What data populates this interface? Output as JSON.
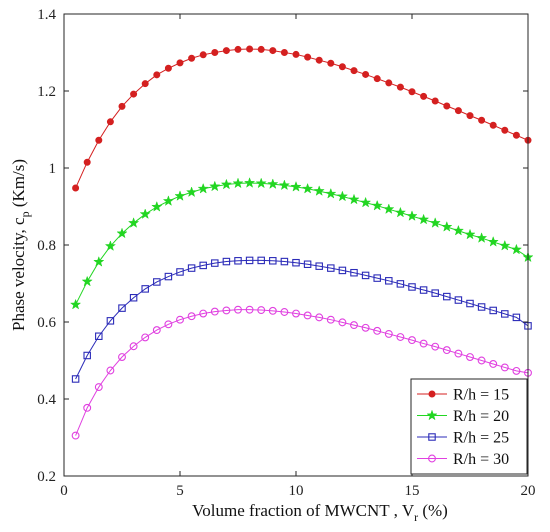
{
  "chart_data": {
    "type": "line",
    "xlabel": {
      "main": "Volume fraction of MWCNT , V",
      "sub": "r",
      "tail": " (%)"
    },
    "ylabel": {
      "main": "Phase velocity, c",
      "sub": "p",
      "tail": " (Km/s)"
    },
    "xlim": [
      0,
      20
    ],
    "ylim": [
      0.2,
      1.4
    ],
    "xticks": [
      0,
      5,
      10,
      15,
      20
    ],
    "xtick_labels": [
      "0",
      "5",
      "10",
      "15",
      "20"
    ],
    "yticks": [
      0.2,
      0.4,
      0.6,
      0.8,
      1.0,
      1.2,
      1.4
    ],
    "ytick_labels": [
      "0.2",
      "0.4",
      "0.6",
      "0.8",
      "1",
      "1.2",
      "1.4"
    ],
    "grid": false,
    "legend_position": "bottom-right",
    "x": [
      0.5,
      1,
      1.5,
      2,
      2.5,
      3,
      3.5,
      4,
      4.5,
      5,
      5.5,
      6,
      6.5,
      7,
      7.5,
      8,
      8.5,
      9,
      9.5,
      10,
      10.5,
      11,
      11.5,
      12,
      12.5,
      13,
      13.5,
      14,
      14.5,
      15,
      15.5,
      16,
      16.5,
      17,
      17.5,
      18,
      18.5,
      19,
      19.5,
      20
    ],
    "series": [
      {
        "name": "R/h = 15",
        "color": "#d42020",
        "marker": "dot",
        "values": [
          0.948,
          1.015,
          1.072,
          1.12,
          1.16,
          1.192,
          1.219,
          1.242,
          1.259,
          1.273,
          1.285,
          1.294,
          1.3,
          1.305,
          1.308,
          1.309,
          1.308,
          1.305,
          1.3,
          1.295,
          1.288,
          1.28,
          1.272,
          1.263,
          1.253,
          1.243,
          1.232,
          1.221,
          1.21,
          1.198,
          1.186,
          1.174,
          1.161,
          1.149,
          1.136,
          1.124,
          1.111,
          1.098,
          1.085,
          1.072
        ]
      },
      {
        "name": "R/h = 20",
        "color": "#22d622",
        "marker": "star",
        "values": [
          0.645,
          0.705,
          0.756,
          0.797,
          0.83,
          0.857,
          0.88,
          0.899,
          0.914,
          0.927,
          0.937,
          0.946,
          0.952,
          0.957,
          0.96,
          0.961,
          0.96,
          0.958,
          0.955,
          0.951,
          0.946,
          0.94,
          0.933,
          0.926,
          0.918,
          0.91,
          0.902,
          0.893,
          0.884,
          0.875,
          0.866,
          0.857,
          0.847,
          0.837,
          0.827,
          0.818,
          0.808,
          0.798,
          0.788,
          0.768
        ]
      },
      {
        "name": "R/h = 25",
        "color": "#2b2bb8",
        "marker": "square",
        "values": [
          0.452,
          0.513,
          0.563,
          0.603,
          0.636,
          0.663,
          0.686,
          0.704,
          0.718,
          0.73,
          0.74,
          0.747,
          0.753,
          0.757,
          0.759,
          0.76,
          0.76,
          0.759,
          0.757,
          0.754,
          0.75,
          0.745,
          0.74,
          0.734,
          0.728,
          0.721,
          0.714,
          0.707,
          0.699,
          0.691,
          0.683,
          0.675,
          0.666,
          0.657,
          0.648,
          0.639,
          0.63,
          0.621,
          0.612,
          0.59
        ]
      },
      {
        "name": "R/h = 30",
        "color": "#e040e0",
        "marker": "circle",
        "values": [
          0.305,
          0.377,
          0.431,
          0.474,
          0.509,
          0.537,
          0.56,
          0.579,
          0.594,
          0.606,
          0.615,
          0.622,
          0.627,
          0.63,
          0.632,
          0.632,
          0.631,
          0.629,
          0.626,
          0.622,
          0.617,
          0.612,
          0.606,
          0.599,
          0.592,
          0.585,
          0.577,
          0.569,
          0.561,
          0.553,
          0.544,
          0.536,
          0.527,
          0.518,
          0.509,
          0.5,
          0.491,
          0.482,
          0.473,
          0.468
        ]
      }
    ]
  }
}
